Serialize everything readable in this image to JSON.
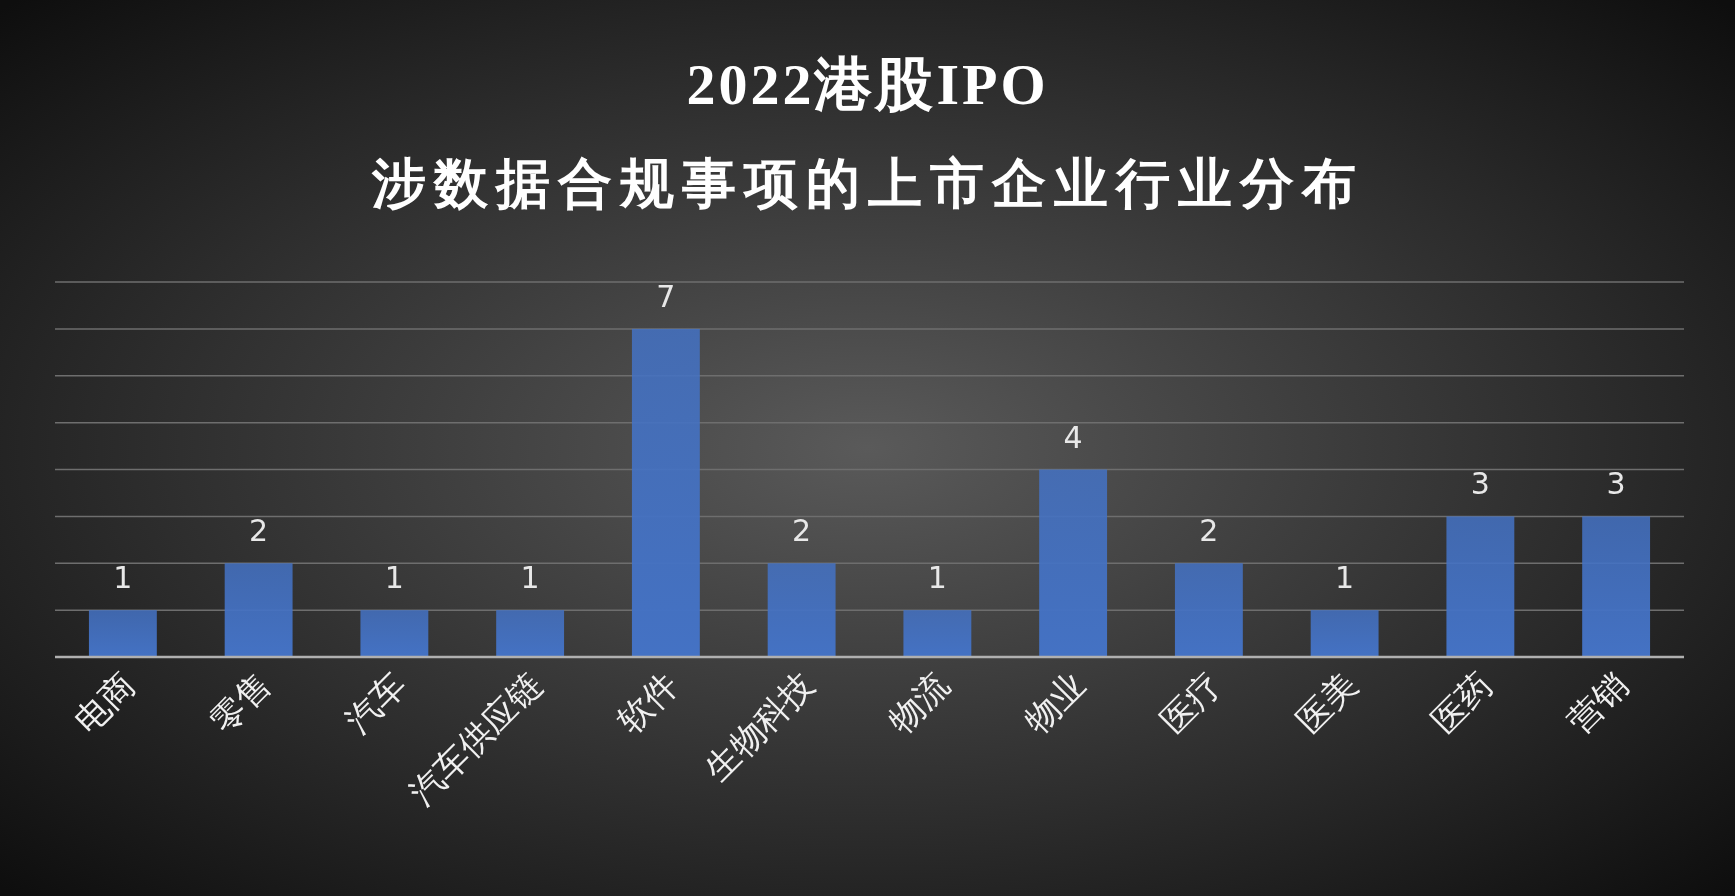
{
  "chart_data": {
    "type": "bar",
    "title": "2022港股IPO\n涉数据合规事项的上市企业行业分布",
    "categories": [
      "电商",
      "零售",
      "汽车",
      "汽车供应链",
      "软件",
      "生物科技",
      "物流",
      "物业",
      "医疗",
      "医美",
      "医药",
      "营销"
    ],
    "values": [
      1,
      2,
      1,
      1,
      7,
      2,
      1,
      4,
      2,
      1,
      3,
      3
    ],
    "color": "#4472c4",
    "ylim": [
      0,
      8
    ],
    "yticks": [
      {
        "value": 0,
        "label": null
      },
      {
        "value": 1,
        "label": null
      },
      {
        "value": 2,
        "label": null
      },
      {
        "value": 3,
        "label": null
      },
      {
        "value": 4,
        "label": null
      },
      {
        "value": 5,
        "label": null
      },
      {
        "value": 6,
        "label": null
      },
      {
        "value": 7,
        "label": null
      },
      {
        "value": 8,
        "label": null
      }
    ],
    "tick_labels": "x",
    "grid": "y",
    "data_labels": true
  }
}
